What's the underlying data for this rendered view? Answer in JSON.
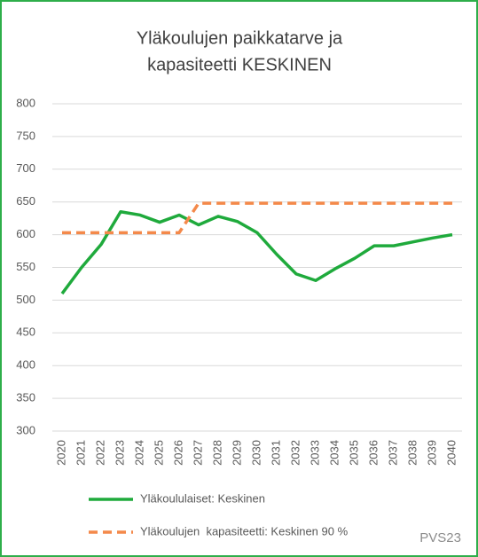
{
  "chart_data": {
    "type": "line",
    "title": [
      "Yläkoulujen paikkatarve ja",
      "kapasiteetti KESKINEN"
    ],
    "categories": [
      "2020",
      "2021",
      "2022",
      "2023",
      "2024",
      "2025",
      "2026",
      "2027",
      "2028",
      "2029",
      "2030",
      "2031",
      "2032",
      "2033",
      "2034",
      "2035",
      "2036",
      "2037",
      "2038",
      "2039",
      "2040"
    ],
    "series": [
      {
        "name": "Yläkoululaiset: Keskinen",
        "color": "#1faa3c",
        "dash": false,
        "values": [
          510,
          550,
          585,
          635,
          630,
          619,
          630,
          615,
          628,
          620,
          603,
          570,
          540,
          530,
          548,
          564,
          583,
          583,
          589,
          595,
          600
        ]
      },
      {
        "name": "Yläkoulujen  kapasiteetti: Keskinen 90 %",
        "color": "#f4894a",
        "dash": true,
        "values": [
          603,
          603,
          603,
          603,
          603,
          603,
          603,
          648,
          648,
          648,
          648,
          648,
          648,
          648,
          648,
          648,
          648,
          648,
          648,
          648,
          648
        ]
      }
    ],
    "ylim": [
      300,
      800
    ],
    "yticks": [
      300,
      350,
      400,
      450,
      500,
      550,
      600,
      650,
      700,
      750,
      800
    ],
    "grid": true,
    "annotation": "PVS23"
  }
}
